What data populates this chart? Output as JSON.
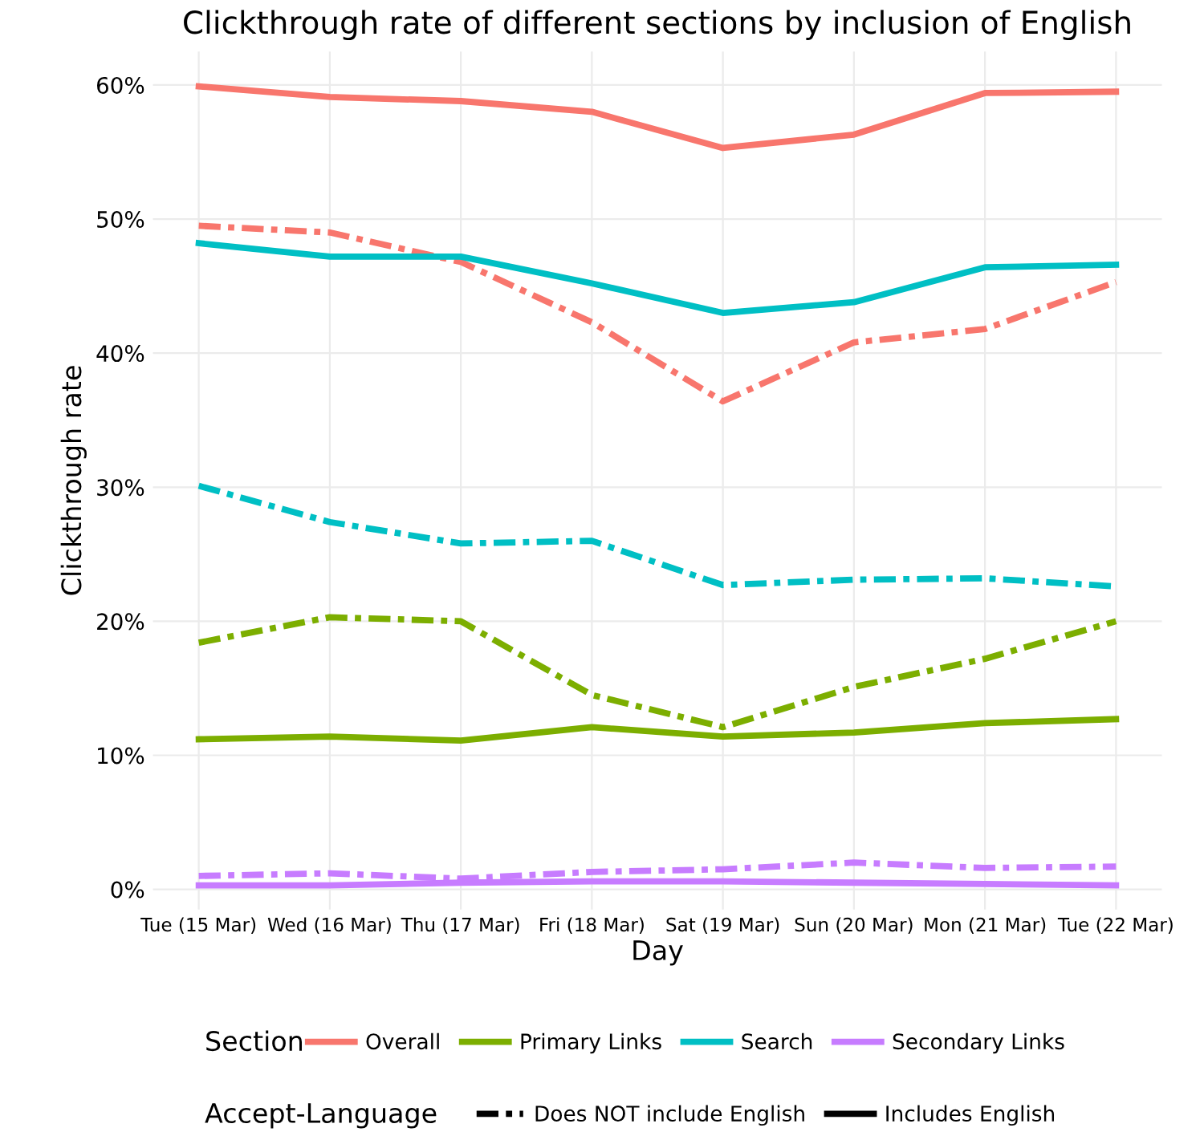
{
  "chart_data": {
    "type": "line",
    "title": "Clickthrough rate of different sections by inclusion of English",
    "xlabel": "Day",
    "ylabel": "Clickthrough rate",
    "categories": [
      "Tue (15 Mar)",
      "Wed (16 Mar)",
      "Thu (17 Mar)",
      "Fri (18 Mar)",
      "Sat (19 Mar)",
      "Sun (20 Mar)",
      "Mon (21 Mar)",
      "Tue (22 Mar)"
    ],
    "ylim": [
      -1.5,
      62.5
    ],
    "yticks": [
      {
        "value": 0,
        "label": "0%"
      },
      {
        "value": 10,
        "label": "10%"
      },
      {
        "value": 20,
        "label": "20%"
      },
      {
        "value": 30,
        "label": "30%"
      },
      {
        "value": 40,
        "label": "40%"
      },
      {
        "value": 50,
        "label": "50%"
      },
      {
        "value": 60,
        "label": "60%"
      }
    ],
    "grid": true,
    "legend": "bottom",
    "legend_title": [
      "Section",
      "Accept-Language"
    ],
    "annotations": [
      "Does NOT include English",
      "Includes English"
    ],
    "series": [
      {
        "name": "Overall",
        "color": "#f8766d",
        "line_style": "solid",
        "values": [
          59.9,
          59.1,
          58.8,
          58.0,
          55.3,
          56.3,
          59.4,
          59.5
        ]
      },
      {
        "color": "#f8766d",
        "line_style": "dashed",
        "values": [
          49.5,
          49.0,
          46.8,
          42.3,
          36.4,
          40.8,
          41.8,
          45.3
        ]
      },
      {
        "name": "Primary Links",
        "color": "#7cae00",
        "line_style": "solid",
        "values": [
          11.2,
          11.4,
          11.1,
          12.1,
          11.4,
          11.7,
          12.4,
          12.7
        ]
      },
      {
        "color": "#7cae00",
        "line_style": "dashed",
        "values": [
          18.4,
          20.3,
          20.0,
          14.5,
          12.1,
          15.1,
          17.2,
          20.0
        ]
      },
      {
        "name": "Search",
        "color": "#00bfc4",
        "line_style": "solid",
        "values": [
          48.2,
          47.2,
          47.2,
          45.2,
          43.0,
          43.8,
          46.4,
          46.6
        ]
      },
      {
        "color": "#00bfc4",
        "line_style": "dashed",
        "values": [
          30.1,
          27.4,
          25.8,
          26.0,
          22.7,
          23.1,
          23.2,
          22.6
        ]
      },
      {
        "name": "Secondary Links",
        "color": "#c77cff",
        "line_style": "solid",
        "values": [
          0.3,
          0.3,
          0.5,
          0.6,
          0.6,
          0.5,
          0.4,
          0.3
        ]
      },
      {
        "color": "#c77cff",
        "line_style": "dashed",
        "values": [
          1.0,
          1.2,
          0.8,
          1.3,
          1.5,
          2.0,
          1.6,
          1.7
        ]
      }
    ]
  }
}
